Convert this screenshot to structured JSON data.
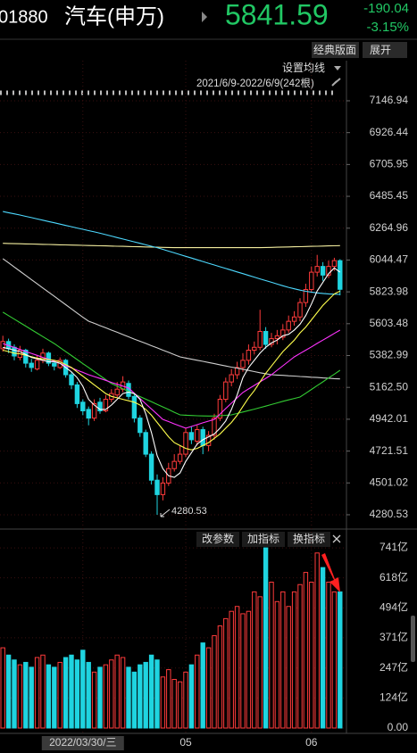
{
  "header": {
    "code": "01880",
    "name": "汽车(申万)",
    "price": "5841.59",
    "change": "-190.04",
    "change_pct": "-3.15%"
  },
  "toolbar": {
    "layout": "经典版面",
    "expand": "展开",
    "ma_settings": "设置均线",
    "indicator_buttons": [
      "改参数",
      "加指标",
      "换指标"
    ]
  },
  "chart_data": {
    "type": "candlestick",
    "range_label": "2021/6/9-2022/6/9(242根)",
    "categories": [
      null,
      null,
      null,
      null,
      null,
      null,
      null,
      null,
      null,
      null,
      null,
      null,
      null,
      null,
      "2022/03/30/三",
      null,
      null,
      null,
      null,
      null,
      null,
      null,
      null,
      null,
      null,
      null,
      null,
      null,
      null,
      null,
      null,
      null,
      "05",
      null,
      null,
      null,
      null,
      null,
      null,
      null,
      null,
      null,
      null,
      null,
      null,
      null,
      null,
      null,
      null,
      null,
      null,
      null,
      null,
      null,
      "06",
      null,
      null,
      null,
      null,
      null
    ],
    "open": [
      5430,
      5480,
      5440,
      5370,
      5420,
      5330,
      5290,
      5350,
      5400,
      5330,
      5300,
      5350,
      5250,
      5180,
      5060,
      5010,
      4950,
      5060,
      5000,
      5080,
      5110,
      5150,
      5190,
      5100,
      4950,
      4850,
      4700,
      4520,
      4420,
      4500,
      4600,
      4650,
      4700,
      4850,
      4790,
      4870,
      4760,
      4830,
      4950,
      5080,
      5200,
      5250,
      5300,
      5350,
      5420,
      5440,
      5550,
      5460,
      5500,
      5510,
      5560,
      5620,
      5650,
      5750,
      5840,
      5960,
      6000,
      5940,
      6000,
      6040
    ],
    "high": [
      5520,
      5500,
      5460,
      5450,
      5430,
      5360,
      5380,
      5430,
      5410,
      5350,
      5370,
      5360,
      5270,
      5200,
      5080,
      5030,
      5080,
      5090,
      5110,
      5150,
      5200,
      5240,
      5210,
      5120,
      4970,
      4870,
      4720,
      4560,
      4540,
      4640,
      4700,
      4760,
      4880,
      4890,
      4900,
      4890,
      4860,
      4980,
      5110,
      5230,
      5290,
      5340,
      5400,
      5460,
      5480,
      5700,
      5580,
      5540,
      5560,
      5600,
      5660,
      5690,
      5780,
      5880,
      6000,
      6080,
      6030,
      6040,
      6060,
      6050
    ],
    "low": [
      5410,
      5400,
      5350,
      5350,
      5300,
      5270,
      5280,
      5330,
      5310,
      5280,
      5290,
      5230,
      5150,
      5020,
      4970,
      4900,
      4930,
      4980,
      4990,
      5060,
      5090,
      5130,
      5080,
      4920,
      4820,
      4680,
      4490,
      4280.53,
      4380,
      4480,
      4580,
      4630,
      4680,
      4770,
      4760,
      4700,
      4720,
      4800,
      4930,
      5060,
      5170,
      5220,
      5270,
      5320,
      5390,
      5420,
      5430,
      5440,
      5460,
      5490,
      5540,
      5590,
      5620,
      5720,
      5820,
      5930,
      5900,
      5920,
      5970,
      5800
    ],
    "close": [
      5480,
      5430,
      5380,
      5420,
      5330,
      5300,
      5350,
      5400,
      5330,
      5310,
      5350,
      5250,
      5180,
      5050,
      5000,
      4950,
      5050,
      5000,
      5080,
      5120,
      5150,
      5200,
      5100,
      4950,
      4850,
      4700,
      4520,
      4420,
      4500,
      4600,
      4650,
      4700,
      4850,
      4800,
      4870,
      4760,
      4830,
      4950,
      5080,
      5200,
      5250,
      5300,
      5350,
      5420,
      5440,
      5550,
      5460,
      5500,
      5520,
      5560,
      5620,
      5650,
      5750,
      5840,
      5960,
      6000,
      5940,
      6000,
      6040,
      5841.59
    ],
    "up_color": "#ff3b3b",
    "down_color": "#1fd4e0",
    "series": [
      {
        "color": "#f5efa0",
        "values": [
          6160,
          6159,
          6158,
          6157,
          6156,
          6155,
          6154,
          6153,
          6152,
          6151,
          6150,
          6149,
          6148,
          6147,
          6146,
          6145,
          6144,
          6143,
          6142,
          6141,
          6140,
          6139,
          6138,
          6137,
          6136,
          6135,
          6134,
          6133,
          6132,
          6131,
          6130,
          6130,
          6130,
          6130,
          6130,
          6130,
          6130,
          6130,
          6130,
          6130,
          6130,
          6130,
          6130,
          6130,
          6130,
          6130,
          6131,
          6132,
          6133,
          6134,
          6135,
          6136,
          6137,
          6138,
          6139,
          6140,
          6141,
          6142,
          6143,
          6144
        ]
      },
      {
        "color": "#4dd9ff",
        "values": [
          6380,
          6372,
          6364,
          6356,
          6347,
          6338,
          6329,
          6320,
          6311,
          6302,
          6293,
          6284,
          6275,
          6266,
          6257,
          6248,
          6239,
          6230,
          6220,
          6210,
          6200,
          6190,
          6180,
          6170,
          6160,
          6150,
          6140,
          6130,
          6118,
          6106,
          6094,
          6082,
          6070,
          6058,
          6046,
          6034,
          6022,
          6010,
          5998,
          5986,
          5974,
          5962,
          5950,
          5938,
          5926,
          5914,
          5902,
          5890,
          5878,
          5866,
          5855,
          5845,
          5836,
          5828,
          5822,
          5817,
          5813,
          5810,
          5808,
          5806
        ]
      },
      {
        "color": "#cfcfcf",
        "values": [
          6054,
          6025,
          5996,
          5967,
          5938,
          5909,
          5880,
          5851,
          5822,
          5793,
          5764,
          5735,
          5706,
          5677,
          5648,
          5621,
          5606,
          5590,
          5575,
          5559,
          5544,
          5528,
          5513,
          5497,
          5482,
          5467,
          5451,
          5436,
          5420,
          5405,
          5389,
          5374,
          5366,
          5358,
          5350,
          5343,
          5335,
          5327,
          5319,
          5311,
          5303,
          5296,
          5288,
          5280,
          5272,
          5264,
          5257,
          5250,
          5248,
          5246,
          5243,
          5241,
          5238,
          5236,
          5233,
          5231,
          5228,
          5226,
          5223,
          5221
        ]
      },
      {
        "color": "#33cc33",
        "values": [
          5683,
          5659,
          5635,
          5611,
          5587,
          5562,
          5538,
          5514,
          5490,
          5466,
          5438,
          5410,
          5383,
          5355,
          5327,
          5300,
          5272,
          5244,
          5216,
          5189,
          5171,
          5153,
          5135,
          5117,
          5099,
          5081,
          5063,
          5045,
          5027,
          5009,
          4990,
          4972,
          4970,
          4968,
          4966,
          4965,
          4964,
          4964,
          4966,
          4969,
          4972,
          4982,
          4992,
          5002,
          5012,
          5022,
          5033,
          5044,
          5055,
          5066,
          5076,
          5086,
          5096,
          5122,
          5148,
          5175,
          5201,
          5228,
          5254,
          5281
        ]
      },
      {
        "color": "#ff33ff",
        "values": [
          5466,
          5452,
          5439,
          5425,
          5411,
          5398,
          5384,
          5370,
          5357,
          5343,
          5328,
          5312,
          5297,
          5281,
          5266,
          5250,
          5237,
          5224,
          5211,
          5197,
          5184,
          5171,
          5158,
          5122,
          5086,
          5049,
          5013,
          4977,
          4941,
          4926,
          4910,
          4895,
          4880,
          4892,
          4904,
          4917,
          4929,
          4941,
          4978,
          5016,
          5053,
          5090,
          5127,
          5152,
          5176,
          5201,
          5225,
          5250,
          5281,
          5312,
          5343,
          5374,
          5397,
          5420,
          5443,
          5467,
          5490,
          5513,
          5536,
          5559
        ]
      },
      {
        "color": "#ffff4d",
        "values": [
          5420,
          5410,
          5400,
          5395,
          5385,
          5375,
          5365,
          5360,
          5355,
          5350,
          5340,
          5320,
          5300,
          5270,
          5240,
          5210,
          5180,
          5150,
          5120,
          5100,
          5090,
          5080,
          5070,
          5060,
          5040,
          5010,
          4970,
          4920,
          4870,
          4820,
          4780,
          4760,
          4740,
          4730,
          4740,
          4760,
          4780,
          4810,
          4840,
          4880,
          4920,
          4970,
          5030,
          5090,
          5140,
          5200,
          5260,
          5310,
          5360,
          5410,
          5450,
          5490,
          5540,
          5580,
          5630,
          5680,
          5730,
          5770,
          5810,
          5830
        ]
      },
      {
        "color": "#ffffff",
        "values": [
          5440,
          5430,
          5420,
          5410,
          5390,
          5370,
          5360,
          5350,
          5340,
          5340,
          5330,
          5300,
          5270,
          5230,
          5170,
          5080,
          5040,
          5010,
          5010,
          5040,
          5080,
          5120,
          5130,
          5120,
          5080,
          4980,
          4850,
          4690,
          4600,
          4550,
          4540,
          4570,
          4650,
          4710,
          4770,
          4800,
          4820,
          4840,
          4880,
          4930,
          5010,
          5110,
          5230,
          5300,
          5350,
          5400,
          5440,
          5470,
          5490,
          5520,
          5530,
          5560,
          5600,
          5660,
          5740,
          5830,
          5890,
          5950,
          5990,
          5960
        ]
      }
    ],
    "ylim": [
      4200,
      7258
    ],
    "yticks": [
      7146.94,
      6926.44,
      6705.95,
      6485.45,
      6264.96,
      6044.47,
      5823.98,
      5603.48,
      5382.99,
      {
        "value": 5162.5,
        "label": "5162.50"
      },
      4942.01,
      4721.51,
      4501.02,
      4280.53
    ],
    "grid": true,
    "volume": {
      "values": [
        330,
        300,
        280,
        260,
        270,
        250,
        290,
        300,
        260,
        250,
        270,
        290,
        300,
        280,
        320,
        270,
        230,
        250,
        260,
        280,
        300,
        290,
        250,
        230,
        260,
        270,
        300,
        280,
        210,
        240,
        200,
        190,
        230,
        260,
        300,
        350,
        330,
        380,
        420,
        450,
        480,
        500,
        470,
        480,
        560,
        540,
        741,
        600,
        520,
        560,
        500,
        560,
        590,
        640,
        600,
        720,
        660,
        600,
        560,
        560
      ],
      "ylim": [
        0,
        800
      ],
      "yticks": [
        {
          "value": 741,
          "label": "741亿"
        },
        {
          "value": 618,
          "label": "618亿"
        },
        {
          "value": 494,
          "label": "494亿"
        },
        {
          "value": 371,
          "label": "371亿"
        },
        {
          "value": 247,
          "label": "247亿"
        },
        {
          "value": 124,
          "label": "124亿"
        },
        {
          "value": 0,
          "label": "0.00"
        }
      ]
    }
  }
}
